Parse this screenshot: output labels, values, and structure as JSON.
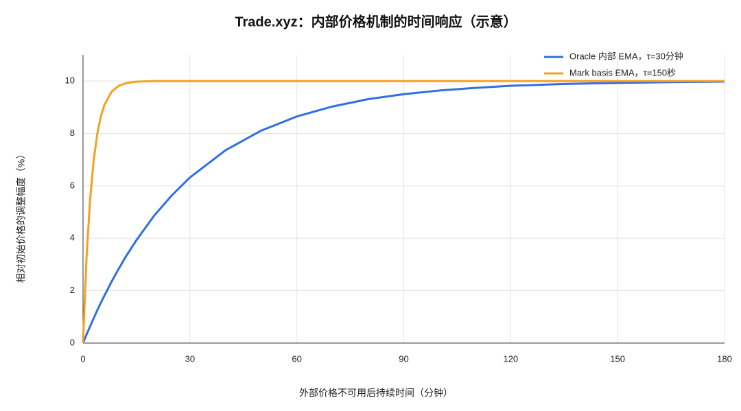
{
  "chart_data": {
    "type": "line",
    "title": "Trade.xyz：内部价格机制的时间响应（示意）",
    "x_label": "外部价格不可用后持续时间（分钟）",
    "y_label": "相对初始价格的调整幅度（%）",
    "x": [
      0,
      1,
      2,
      3,
      4,
      5,
      6,
      8,
      10,
      12,
      15,
      20,
      25,
      30,
      40,
      50,
      60,
      70,
      80,
      90,
      100,
      110,
      120,
      135,
      150,
      165,
      180
    ],
    "series": [
      {
        "name": "Oracle 内部 EMA，τ=30分钟",
        "color": "#2f6fdf",
        "values": [
          0,
          0.33,
          0.64,
          0.95,
          1.25,
          1.54,
          1.81,
          2.34,
          2.83,
          3.3,
          3.93,
          4.87,
          5.65,
          6.32,
          7.36,
          8.11,
          8.65,
          9.03,
          9.31,
          9.5,
          9.64,
          9.74,
          9.82,
          9.89,
          9.93,
          9.96,
          9.98
        ]
      },
      {
        "name": "Mark basis EMA，τ=150秒",
        "color": "#f4a020",
        "values": [
          0,
          3.3,
          5.51,
          6.99,
          7.98,
          8.65,
          9.09,
          9.59,
          9.82,
          9.92,
          9.98,
          10,
          10,
          10,
          10,
          10,
          10,
          10,
          10,
          10,
          10,
          10,
          10,
          10,
          10,
          10,
          10
        ]
      }
    ],
    "xlim": [
      0,
      180
    ],
    "xticks": [
      0,
      30,
      60,
      90,
      120,
      150,
      180
    ],
    "ylim": [
      0,
      11
    ],
    "yticks": [
      0,
      2,
      4,
      6,
      8,
      10
    ],
    "grid": true,
    "legend": "top-right"
  }
}
